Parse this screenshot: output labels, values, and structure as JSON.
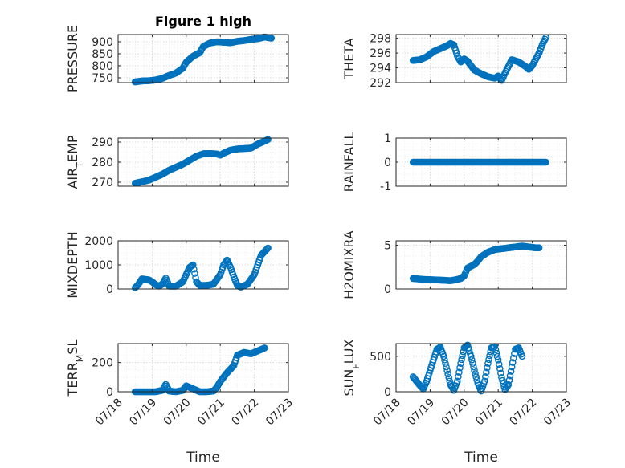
{
  "chart_data": [
    {
      "type": "scatter",
      "title": "Figure 1 high",
      "ylabel": "PRESSURE",
      "ylim": [
        730,
        930
      ],
      "yticks": [
        750,
        800,
        850,
        900
      ],
      "ytick_labels": [
        "750",
        "800",
        "850",
        "900"
      ],
      "points": [
        [
          18.5,
          733
        ],
        [
          18.7,
          737
        ],
        [
          18.9,
          738
        ],
        [
          19.1,
          741
        ],
        [
          19.3,
          748
        ],
        [
          19.5,
          760
        ],
        [
          19.7,
          770
        ],
        [
          19.9,
          790
        ],
        [
          20.0,
          815
        ],
        [
          20.2,
          840
        ],
        [
          20.4,
          855
        ],
        [
          20.5,
          880
        ],
        [
          20.7,
          895
        ],
        [
          20.9,
          900
        ],
        [
          21.1,
          898
        ],
        [
          21.3,
          896
        ],
        [
          21.5,
          902
        ],
        [
          21.7,
          905
        ],
        [
          21.9,
          910
        ],
        [
          22.1,
          913
        ],
        [
          22.3,
          920
        ],
        [
          22.5,
          915
        ]
      ]
    },
    {
      "type": "scatter",
      "title": "",
      "ylabel": "THETA",
      "ylim": [
        292,
        298.5
      ],
      "yticks": [
        292,
        294,
        296,
        298
      ],
      "ytick_labels": [
        "292",
        "294",
        "296",
        "298"
      ],
      "points": [
        [
          18.5,
          295
        ],
        [
          18.7,
          295.1
        ],
        [
          18.9,
          295.5
        ],
        [
          19.1,
          296.2
        ],
        [
          19.3,
          296.6
        ],
        [
          19.5,
          297
        ],
        [
          19.6,
          297.3
        ],
        [
          19.7,
          297.1
        ],
        [
          19.8,
          295.6
        ],
        [
          19.9,
          294.8
        ],
        [
          20.0,
          295.2
        ],
        [
          20.1,
          294.9
        ],
        [
          20.2,
          294.3
        ],
        [
          20.3,
          293.7
        ],
        [
          20.5,
          293.2
        ],
        [
          20.7,
          292.8
        ],
        [
          20.9,
          292.6
        ],
        [
          21.0,
          292.9
        ],
        [
          21.1,
          292.3
        ],
        [
          21.2,
          293.3
        ],
        [
          21.3,
          294.2
        ],
        [
          21.4,
          295.1
        ],
        [
          21.6,
          294.8
        ],
        [
          21.8,
          294.2
        ],
        [
          21.9,
          293.8
        ],
        [
          22.0,
          294.3
        ],
        [
          22.2,
          296
        ],
        [
          22.3,
          297.2
        ],
        [
          22.4,
          298.1
        ]
      ]
    },
    {
      "type": "scatter",
      "title": "",
      "ylabel": "AIR_TEMP",
      "ylim": [
        268,
        292
      ],
      "yticks": [
        270,
        280,
        290
      ],
      "ytick_labels": [
        "270",
        "280",
        "290"
      ],
      "points": [
        [
          18.5,
          269.5
        ],
        [
          18.7,
          270.2
        ],
        [
          18.9,
          271
        ],
        [
          19.1,
          272.5
        ],
        [
          19.3,
          274
        ],
        [
          19.5,
          276
        ],
        [
          19.7,
          277.5
        ],
        [
          19.9,
          279
        ],
        [
          20.1,
          281
        ],
        [
          20.3,
          283
        ],
        [
          20.5,
          284.2
        ],
        [
          20.7,
          284.3
        ],
        [
          20.9,
          284.1
        ],
        [
          21.0,
          283.5
        ],
        [
          21.1,
          284.5
        ],
        [
          21.3,
          286
        ],
        [
          21.5,
          286.6
        ],
        [
          21.7,
          286.8
        ],
        [
          21.9,
          287
        ],
        [
          22.1,
          289
        ],
        [
          22.3,
          290.5
        ],
        [
          22.4,
          291.3
        ]
      ]
    },
    {
      "type": "scatter",
      "title": "",
      "ylabel": "RAINFALL",
      "ylim": [
        -1,
        1
      ],
      "yticks": [
        -1,
        0,
        1
      ],
      "ytick_labels": [
        "-1",
        "0",
        "1"
      ],
      "points": [
        [
          18.5,
          0
        ],
        [
          18.8,
          0
        ],
        [
          19.1,
          0
        ],
        [
          19.4,
          0
        ],
        [
          19.7,
          0
        ],
        [
          20.0,
          0
        ],
        [
          20.3,
          0
        ],
        [
          20.6,
          0
        ],
        [
          20.9,
          0
        ],
        [
          21.2,
          0
        ],
        [
          21.5,
          0
        ],
        [
          21.8,
          0
        ],
        [
          22.1,
          0
        ],
        [
          22.4,
          0
        ]
      ]
    },
    {
      "type": "scatter",
      "title": "",
      "ylabel": "MIXDEPTH",
      "ylim": [
        0,
        2000
      ],
      "yticks": [
        0,
        1000,
        2000
      ],
      "ytick_labels": [
        "0",
        "1000",
        "2000"
      ],
      "points": [
        [
          18.5,
          50
        ],
        [
          18.6,
          200
        ],
        [
          18.7,
          420
        ],
        [
          18.9,
          380
        ],
        [
          19.0,
          300
        ],
        [
          19.1,
          180
        ],
        [
          19.2,
          120
        ],
        [
          19.3,
          200
        ],
        [
          19.4,
          450
        ],
        [
          19.5,
          120
        ],
        [
          19.7,
          120
        ],
        [
          19.9,
          300
        ],
        [
          20.0,
          600
        ],
        [
          20.1,
          900
        ],
        [
          20.2,
          1000
        ],
        [
          20.3,
          300
        ],
        [
          20.4,
          150
        ],
        [
          20.6,
          150
        ],
        [
          20.8,
          200
        ],
        [
          21.0,
          600
        ],
        [
          21.1,
          1000
        ],
        [
          21.2,
          1200
        ],
        [
          21.3,
          900
        ],
        [
          21.4,
          500
        ],
        [
          21.5,
          150
        ],
        [
          21.6,
          80
        ],
        [
          21.8,
          200
        ],
        [
          22.0,
          600
        ],
        [
          22.1,
          1000
        ],
        [
          22.2,
          1400
        ],
        [
          22.4,
          1700
        ]
      ]
    },
    {
      "type": "scatter",
      "title": "",
      "ylabel": "H2OMIXRA",
      "ylim": [
        0,
        5.5
      ],
      "yticks": [
        0,
        5
      ],
      "ytick_labels": [
        "0",
        "5"
      ],
      "points": [
        [
          18.5,
          1.2
        ],
        [
          18.8,
          1.1
        ],
        [
          19.1,
          1.05
        ],
        [
          19.4,
          1.0
        ],
        [
          19.6,
          0.95
        ],
        [
          19.8,
          1.1
        ],
        [
          19.9,
          1.2
        ],
        [
          20.0,
          1.5
        ],
        [
          20.1,
          2.4
        ],
        [
          20.3,
          2.8
        ],
        [
          20.4,
          3.2
        ],
        [
          20.5,
          3.7
        ],
        [
          20.7,
          4.2
        ],
        [
          20.9,
          4.5
        ],
        [
          21.1,
          4.6
        ],
        [
          21.3,
          4.7
        ],
        [
          21.5,
          4.8
        ],
        [
          21.7,
          4.9
        ],
        [
          21.9,
          4.8
        ],
        [
          22.1,
          4.7
        ],
        [
          22.2,
          4.7
        ]
      ]
    },
    {
      "type": "scatter",
      "title": "",
      "ylabel": "TERR_MSL",
      "ylim": [
        0,
        330
      ],
      "yticks": [
        0,
        200
      ],
      "ytick_labels": [
        "0",
        "200"
      ],
      "points": [
        [
          18.5,
          0
        ],
        [
          18.7,
          0
        ],
        [
          18.9,
          0
        ],
        [
          19.1,
          0
        ],
        [
          19.3,
          10
        ],
        [
          19.4,
          50
        ],
        [
          19.5,
          5
        ],
        [
          19.7,
          0
        ],
        [
          19.9,
          10
        ],
        [
          20.0,
          40
        ],
        [
          20.2,
          20
        ],
        [
          20.4,
          0
        ],
        [
          20.6,
          0
        ],
        [
          20.8,
          5
        ],
        [
          20.9,
          30
        ],
        [
          21.0,
          70
        ],
        [
          21.2,
          130
        ],
        [
          21.4,
          180
        ],
        [
          21.5,
          250
        ],
        [
          21.7,
          270
        ],
        [
          21.9,
          260
        ],
        [
          22.1,
          280
        ],
        [
          22.3,
          300
        ]
      ]
    },
    {
      "type": "scatter",
      "title": "",
      "ylabel": "SUN_FLUX",
      "ylim": [
        0,
        680
      ],
      "yticks": [
        0,
        500
      ],
      "ytick_labels": [
        "0",
        "500"
      ],
      "points": [
        [
          18.5,
          210
        ],
        [
          18.6,
          150
        ],
        [
          18.7,
          90
        ],
        [
          18.8,
          40
        ],
        [
          18.9,
          150
        ],
        [
          19.0,
          300
        ],
        [
          19.1,
          450
        ],
        [
          19.2,
          600
        ],
        [
          19.3,
          630
        ],
        [
          19.4,
          500
        ],
        [
          19.5,
          300
        ],
        [
          19.6,
          100
        ],
        [
          19.7,
          20
        ],
        [
          19.8,
          150
        ],
        [
          19.9,
          400
        ],
        [
          20.0,
          620
        ],
        [
          20.1,
          660
        ],
        [
          20.2,
          500
        ],
        [
          20.3,
          300
        ],
        [
          20.4,
          120
        ],
        [
          20.5,
          10
        ],
        [
          20.6,
          150
        ],
        [
          20.7,
          400
        ],
        [
          20.8,
          620
        ],
        [
          20.9,
          640
        ],
        [
          21.0,
          450
        ],
        [
          21.1,
          200
        ],
        [
          21.2,
          30
        ],
        [
          21.3,
          100
        ],
        [
          21.4,
          350
        ],
        [
          21.5,
          600
        ],
        [
          21.6,
          620
        ],
        [
          21.7,
          500
        ]
      ]
    }
  ],
  "x_axis": {
    "ticks": [
      18,
      19,
      20,
      21,
      22,
      23
    ],
    "tick_labels": [
      "07/18",
      "07/19",
      "07/20",
      "07/21",
      "07/22",
      "07/23"
    ],
    "xlim": [
      18,
      23
    ],
    "label": "Time"
  },
  "colors": {
    "marker": "#0072bd",
    "axis": "#262626"
  }
}
